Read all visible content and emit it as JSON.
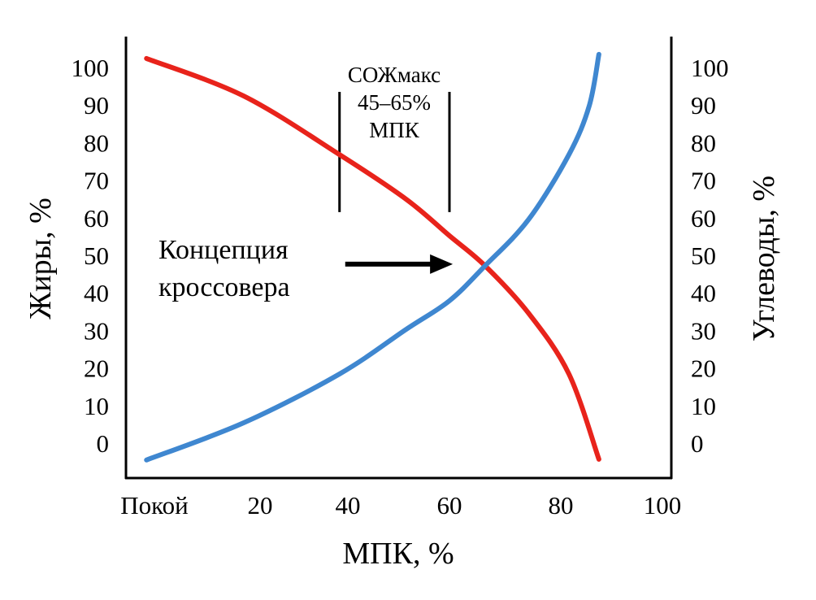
{
  "chart_data": {
    "type": "line",
    "xlabel": "МПК, %",
    "ylabel_left": "Жиры, %",
    "ylabel_right": "Углеводы, %",
    "ylim": [
      0,
      100
    ],
    "xlim": [
      0,
      100
    ],
    "x_ticks": [
      {
        "value": 0,
        "label": "Покой"
      },
      {
        "value": 20,
        "label": "20"
      },
      {
        "value": 40,
        "label": "40"
      },
      {
        "value": 60,
        "label": "60"
      },
      {
        "value": 80,
        "label": "80"
      },
      {
        "value": 100,
        "label": "100"
      }
    ],
    "y_ticks": [
      "0",
      "10",
      "20",
      "30",
      "40",
      "50",
      "60",
      "70",
      "80",
      "90",
      "100"
    ],
    "grid": false,
    "series": [
      {
        "name": "Жиры",
        "color": "#e8231b",
        "x": [
          -1.5,
          16.9,
          38.1,
          51.5,
          60,
          66.4,
          74.2,
          81.6,
          87.5
        ],
        "y": [
          102.4,
          92.4,
          76.8,
          64.9,
          55.2,
          47.2,
          34.6,
          18.4,
          -4.3
        ]
      },
      {
        "name": "Углеводы",
        "color": "#3f87d0",
        "x": [
          -1.5,
          16.9,
          38.1,
          51.5,
          60,
          66.4,
          74.2,
          81.6,
          85.6,
          87.5
        ],
        "y": [
          -4.5,
          5.4,
          18.4,
          30.3,
          37.9,
          47.2,
          59.5,
          76.8,
          89.8,
          103.5
        ]
      }
    ],
    "annotations": {
      "range_label": [
        "СОЖмакс",
        "45–65%",
        "МПК"
      ],
      "range_x": [
        38.1,
        60
      ],
      "range_y": [
        61.5,
        93.5
      ],
      "crossover_label": [
        "Концепция",
        "кроссовера"
      ],
      "arrow": {
        "from": [
          39.4,
          47.2
        ],
        "to": [
          60.6,
          47.2
        ]
      }
    }
  }
}
